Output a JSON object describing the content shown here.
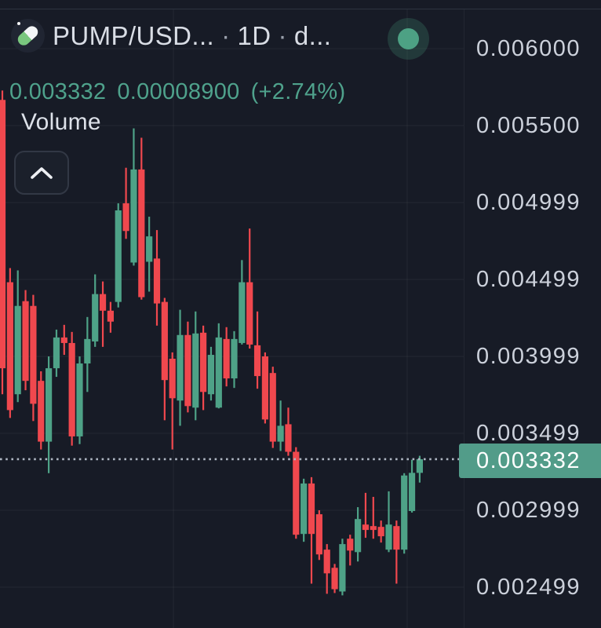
{
  "header": {
    "symbol": "PUMP/USD...",
    "separator": "·",
    "interval": "1D",
    "source": "d..."
  },
  "price_row": {
    "last": "0.003332",
    "change_abs": "0.00008900",
    "change_pct": "(+2.74%)"
  },
  "volume_pane": {
    "label": "Volume",
    "collapse_icon": "chevron-up-icon"
  },
  "icons": {
    "symbol_icon": "pill-icon",
    "logo": "token-logo-circle"
  },
  "price_axis": {
    "badge_text": "0.003332",
    "labels": [
      {
        "text": "0.006000",
        "value": 0.006
      },
      {
        "text": "0.005500",
        "value": 0.0055
      },
      {
        "text": "0.004999",
        "value": 0.005
      },
      {
        "text": "0.004499",
        "value": 0.0045
      },
      {
        "text": "0.003999",
        "value": 0.004
      },
      {
        "text": "0.003499",
        "value": 0.0035
      },
      {
        "text": "0.002999",
        "value": 0.003
      },
      {
        "text": "0.002499",
        "value": 0.0025
      }
    ]
  },
  "colors": {
    "background": "#171b26",
    "up": "#4ea287",
    "down": "#f0484e",
    "badge_bg": "#529c89",
    "accent_text": "#4fa28c",
    "axis_text": "#ccd1db",
    "grid": "rgba(255,255,255,0.055)",
    "price_line": "#aeb6c2"
  },
  "chart_data": {
    "type": "candlestick",
    "symbol": "PUMP/USD...",
    "interval": "1D",
    "title": "PUMP/USD... · 1D",
    "last_price": 0.003332,
    "change_abs": 8.9e-05,
    "change_pct": 2.74,
    "price_line": 0.003332,
    "grid": true,
    "legend_position": "top-left",
    "ylabel": "",
    "ylim_visible": [
      0.002235,
      0.006255
    ],
    "y_ticks": [
      0.006,
      0.0055,
      0.005,
      0.0045,
      0.004,
      0.0035,
      0.003,
      0.0025
    ],
    "candles_ohlc": [
      [
        0.005667,
        0.005728,
        0.003754,
        0.003923
      ],
      [
        0.004482,
        0.004574,
        0.0036,
        0.003651
      ],
      [
        0.003754,
        0.004559,
        0.003703,
        0.004328
      ],
      [
        0.004359,
        0.004431,
        0.00378,
        0.003841
      ],
      [
        0.004328,
        0.0044,
        0.00358,
        0.003692
      ],
      [
        0.003841,
        0.003903,
        0.003395,
        0.003446
      ],
      [
        0.003446,
        0.004,
        0.003241,
        0.003923
      ],
      [
        0.003923,
        0.004174,
        0.003867,
        0.004123
      ],
      [
        0.004123,
        0.004205,
        0.00401,
        0.004087
      ],
      [
        0.004087,
        0.004159,
        0.00342,
        0.00348
      ],
      [
        0.00348,
        0.004,
        0.00343,
        0.003954
      ],
      [
        0.003954,
        0.004256,
        0.003769,
        0.004113
      ],
      [
        0.004097,
        0.004533,
        0.004062,
        0.004405
      ],
      [
        0.004405,
        0.004487,
        0.004062,
        0.004297
      ],
      [
        0.004297,
        0.004354,
        0.004154,
        0.004226
      ],
      [
        0.004354,
        0.004995,
        0.004318,
        0.004949
      ],
      [
        0.004995,
        0.005226,
        0.004764,
        0.004815
      ],
      [
        0.00461,
        0.005482,
        0.00459,
        0.005215
      ],
      [
        0.005215,
        0.005421,
        0.004369,
        0.004385
      ],
      [
        0.004615,
        0.004908,
        0.004421,
        0.00478
      ],
      [
        0.004636,
        0.004821,
        0.0042,
        0.004344
      ],
      [
        0.004354,
        0.00438,
        0.003585,
        0.003846
      ],
      [
        0.003985,
        0.004026,
        0.003395,
        0.003728
      ],
      [
        0.003713,
        0.004303,
        0.003549,
        0.004139
      ],
      [
        0.004139,
        0.004226,
        0.003636,
        0.003677
      ],
      [
        0.003667,
        0.004292,
        0.003585,
        0.004149
      ],
      [
        0.004154,
        0.0042,
        0.003651,
        0.003769
      ],
      [
        0.003754,
        0.004062,
        0.003713,
        0.00401
      ],
      [
        0.003667,
        0.004215,
        0.003662,
        0.004123
      ],
      [
        0.004113,
        0.00419,
        0.003805,
        0.003857
      ],
      [
        0.003857,
        0.004164,
        0.003795,
        0.004113
      ],
      [
        0.004087,
        0.004626,
        0.004077,
        0.004482
      ],
      [
        0.004482,
        0.004831,
        0.004051,
        0.004077
      ],
      [
        0.004072,
        0.004292,
        0.00379,
        0.003872
      ],
      [
        0.004,
        0.004026,
        0.003564,
        0.00359
      ],
      [
        0.003892,
        0.003933,
        0.003405,
        0.003446
      ],
      [
        0.003446,
        0.003713,
        0.003385,
        0.003549
      ],
      [
        0.003559,
        0.003667,
        0.003354,
        0.00338
      ],
      [
        0.00338,
        0.00341,
        0.002815,
        0.002841
      ],
      [
        0.002846,
        0.003205,
        0.002795,
        0.003174
      ],
      [
        0.003174,
        0.003215,
        0.002523,
        0.002846
      ],
      [
        0.002974,
        0.003,
        0.002677,
        0.002713
      ],
      [
        0.002744,
        0.00278,
        0.002457,
        0.00259
      ],
      [
        0.002626,
        0.002651,
        0.002462,
        0.002487
      ],
      [
        0.002472,
        0.002815,
        0.002447,
        0.00278
      ],
      [
        0.002815,
        0.002841,
        0.002641,
        0.002738
      ],
      [
        0.002728,
        0.00302,
        0.002667,
        0.002943
      ],
      [
        0.002907,
        0.003113,
        0.002821,
        0.002872
      ],
      [
        0.002897,
        0.003087,
        0.002815,
        0.002872
      ],
      [
        0.002892,
        0.002933,
        0.00279,
        0.002831
      ],
      [
        0.002744,
        0.003123,
        0.002728,
        0.002907
      ],
      [
        0.002897,
        0.002933,
        0.002523,
        0.002744
      ],
      [
        0.002744,
        0.003241,
        0.002718,
        0.003226
      ],
      [
        0.002995,
        0.003328,
        0.002985,
        0.003243
      ],
      [
        0.003243,
        0.003354,
        0.00318,
        0.003332
      ]
    ]
  }
}
